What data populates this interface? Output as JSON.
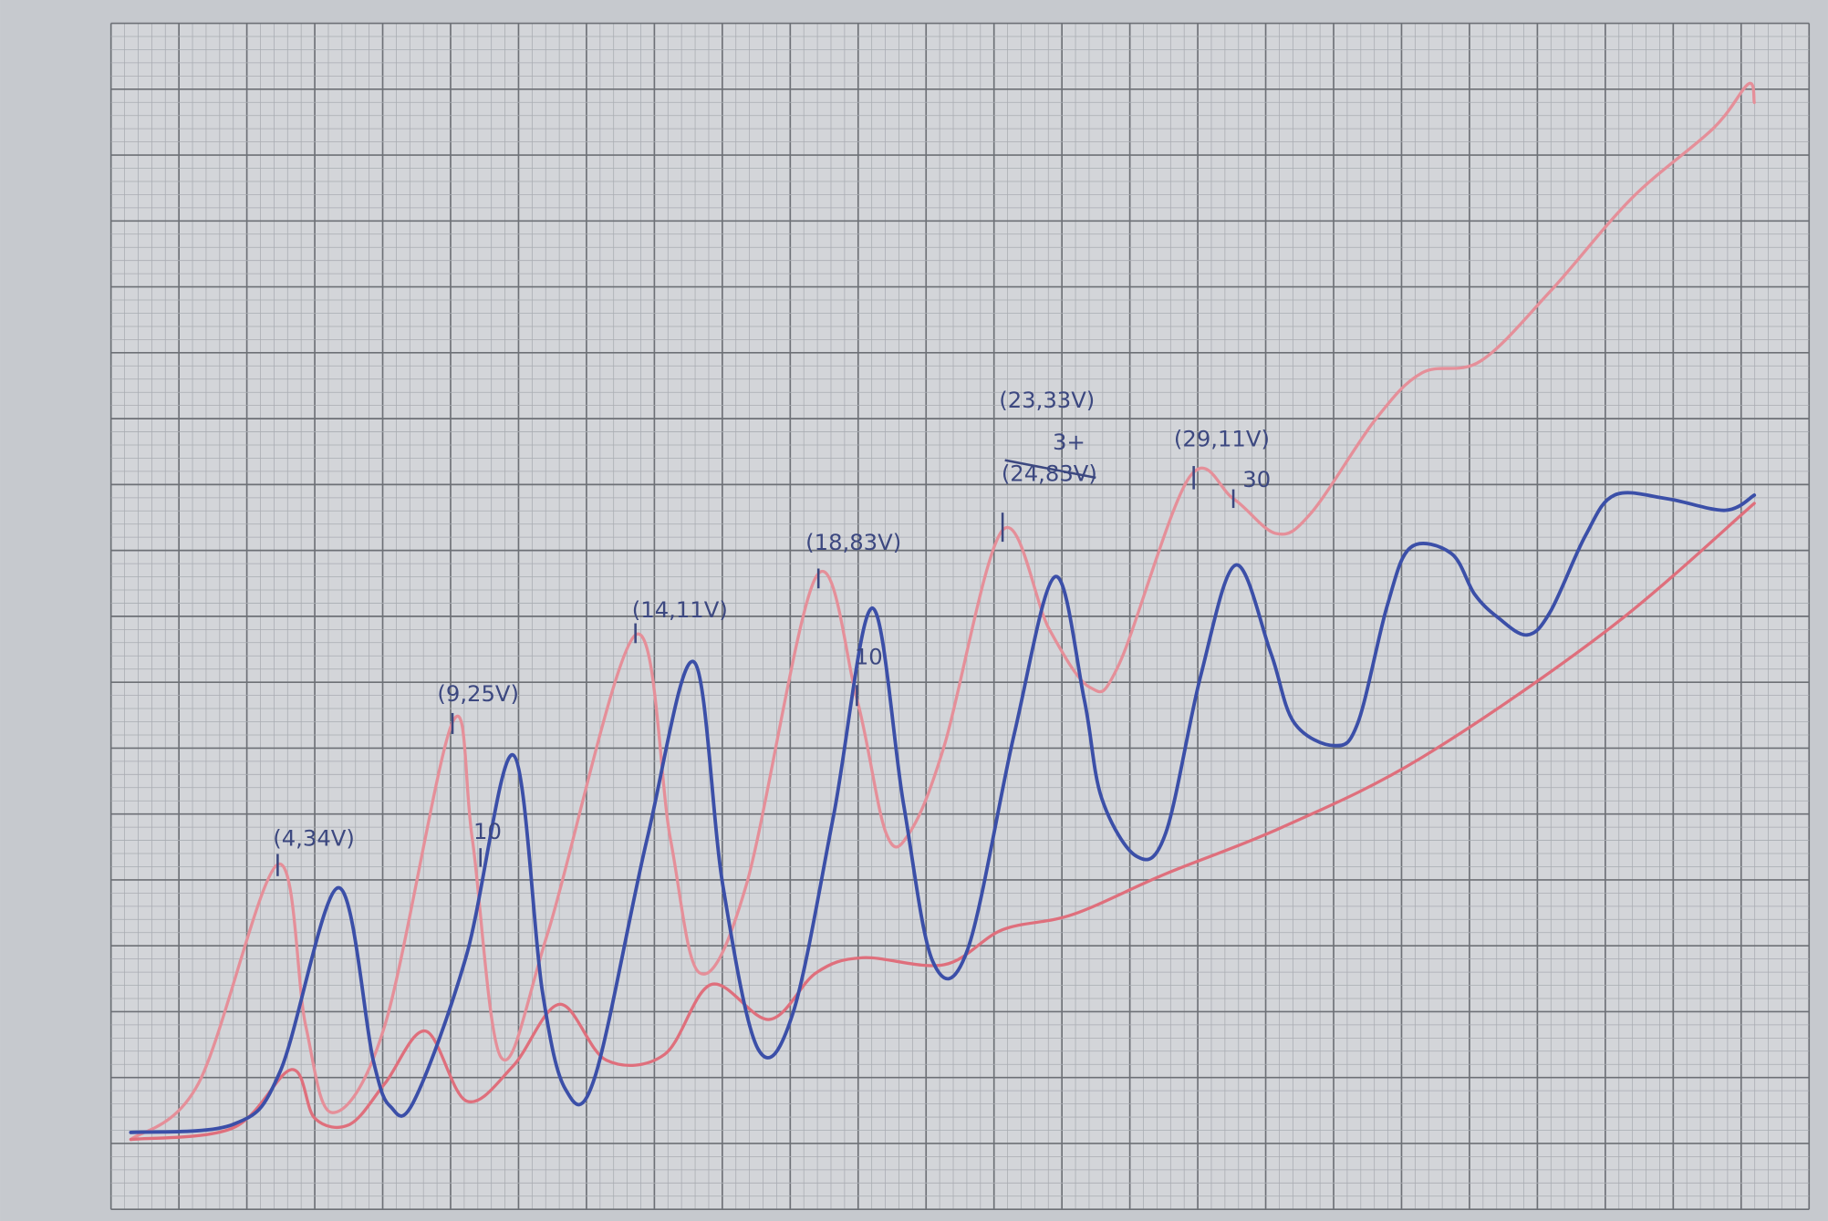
{
  "annotations": [
    "(4,34V)",
    "(9,25V)",
    "(14,11V)",
    "(18,83V)",
    "(23,33V)",
    "(24,83V)",
    "3+",
    "(29,11V)",
    "30",
    "10",
    "10"
  ]
}
